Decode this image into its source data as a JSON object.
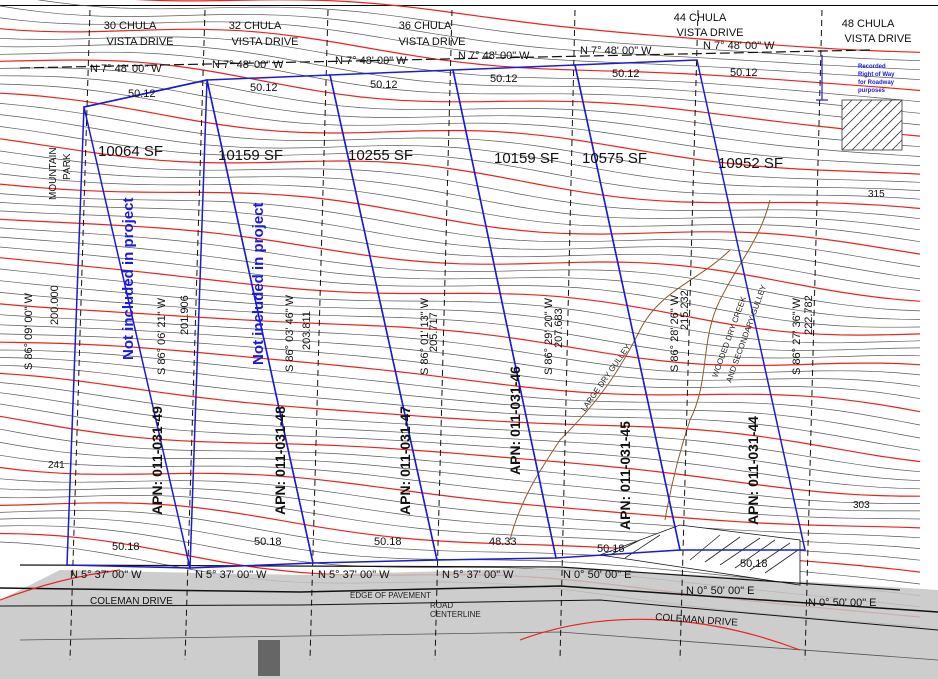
{
  "addresses": [
    "30 CHULA",
    "VISTA DRIVE",
    "32 CHULA",
    "VISTA DRIVE",
    "36 CHULA",
    "VISTA DRIVE",
    "44 CHULA",
    "VISTA DRIVE",
    "48 CHULA",
    "VISTA DRIVE"
  ],
  "top_bearings": [
    "N 7° 48' 00\" W",
    "N 7° 48' 00\" W",
    "N 7° 48' 00\" W",
    "N 7° 48' 00\" W",
    "N 7° 48' 00\" W",
    "N 7° 48' 00\" W"
  ],
  "top_distances": [
    "50.12",
    "50.12",
    "50.12",
    "50.12",
    "50.12",
    "50.12"
  ],
  "areas": [
    "10064 SF",
    "10159 SF",
    "10255 SF",
    "10159 SF",
    "10575 SF",
    "10952 SF"
  ],
  "apns": [
    "APN: 011-031-49",
    "APN: 011-031-48",
    "APN: 011-031-47",
    "APN: 011-031-46",
    "APN: 011-031-45",
    "APN: 011-031-44"
  ],
  "not_included": "Not included in project",
  "side_bearings": [
    "S 86° 09' 00\" W",
    "S 86° 06' 21\" W",
    "S 86° 03' 46\" W",
    "S 86° 01' 13\" W",
    "S 86° 29' 20\" W",
    "S 86° 28' 26\" W",
    "S 86° 27' 36\" W"
  ],
  "side_distances": [
    "200.000",
    "201.906",
    "203.811",
    "205.717",
    "207.683",
    "215.232",
    "222.782"
  ],
  "bottom_bearings": [
    "N 5° 37' 00\" W",
    "N 5° 37' 00\" W",
    "N 5° 37' 00\" W",
    "N 5° 37' 00\" W",
    "N 0° 50' 00\" E",
    "N 0° 50' 00\" E",
    "N 0° 50' 00\" E"
  ],
  "bottom_distances": [
    "50.18",
    "50.18",
    "50.18",
    "48.33",
    "50.18",
    "50.18"
  ],
  "mountain_park": [
    "MOUNTAIN",
    "PARK"
  ],
  "recorded_row": [
    "Recorded",
    "Right of Way",
    "for Roadway",
    "purposes"
  ],
  "road_name": "COLEMAN DRIVE",
  "edge_of_pavement": "EDGE OF PAVEMENT",
  "road_centerline": [
    "ROAD",
    "CENTERLINE"
  ],
  "parcel_numbers": [
    "315",
    "303",
    "241"
  ],
  "creek_labels": [
    "LARGE DRY GULLEY",
    "WOODED DRY CREEK",
    "AND SECONDARY GULLEY"
  ],
  "colors": {
    "lot_lines": "#1a1adb",
    "contour_major": "#e8241c",
    "contour_minor": "#5a5a5a",
    "road_fill": "#c4c4c4",
    "creek": "#8b5a2b"
  }
}
